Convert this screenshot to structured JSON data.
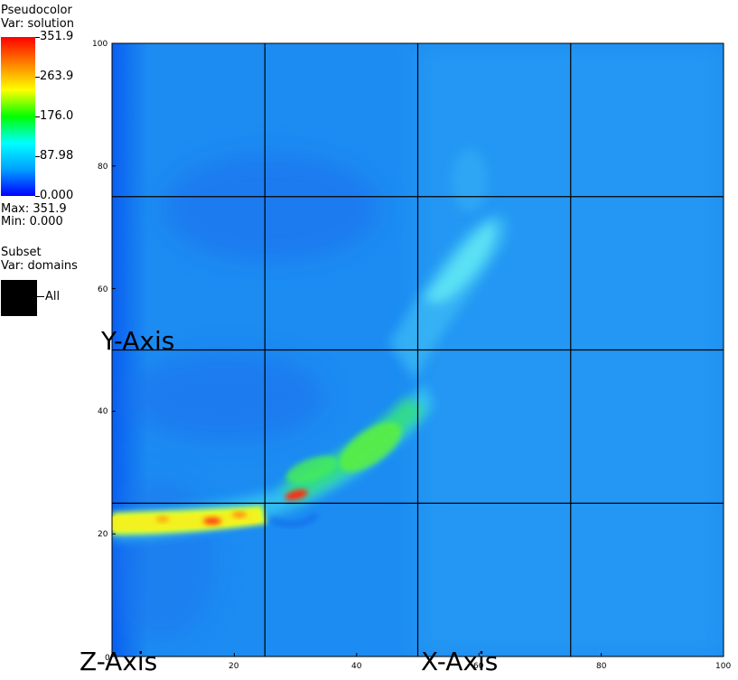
{
  "legend": {
    "plot_type": "Pseudocolor",
    "var_label": "Var: solution",
    "ticks": [
      "351.9",
      "263.9",
      "176.0",
      "87.98",
      "0.000"
    ],
    "max_label": "Max:  351.9",
    "min_label": "Min:  0.000"
  },
  "subset": {
    "title": "Subset",
    "var_label": "Var: domains",
    "item_label": "All"
  },
  "colors": {
    "colormap": [
      "#0000ff",
      "#00a0ff",
      "#00ffff",
      "#00ff00",
      "#ffff00",
      "#ff8000",
      "#ff0000"
    ],
    "background_field": "#1a86f0",
    "grid": "#000000"
  },
  "chart_data": {
    "type": "heatmap",
    "title": "",
    "xlabel": "X-Axis",
    "ylabel": "Y-Axis",
    "zlabel": "Z-Axis",
    "xlim": [
      0,
      100
    ],
    "ylim": [
      0,
      100
    ],
    "x_ticks": [
      {
        "value": 20,
        "label": "20"
      },
      {
        "value": 40,
        "label": "40"
      },
      {
        "value": 60,
        "label": "60"
      },
      {
        "value": 80,
        "label": "80"
      },
      {
        "value": 100,
        "label": "100"
      }
    ],
    "y_ticks": [
      {
        "value": 20,
        "label": "20"
      },
      {
        "value": 40,
        "label": "40"
      },
      {
        "value": 60,
        "label": "60"
      },
      {
        "value": 80,
        "label": "80"
      },
      {
        "value": 100,
        "label": "100"
      }
    ],
    "origin_label": "0",
    "grid_lines_x": [
      25,
      50,
      75
    ],
    "grid_lines_y": [
      25,
      50,
      75
    ],
    "colorbar_range": [
      0,
      351.9
    ]
  }
}
